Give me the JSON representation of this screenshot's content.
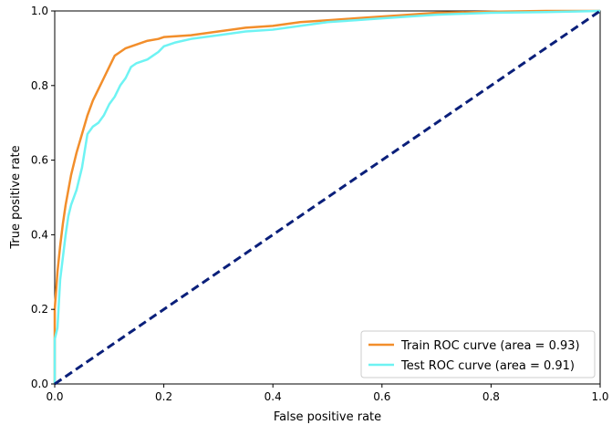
{
  "chart_data": {
    "type": "line",
    "title": "",
    "xlabel": "False positive rate",
    "ylabel": "True positive rate",
    "xlim": [
      0,
      1
    ],
    "ylim": [
      0,
      1
    ],
    "xticks": [
      "0.0",
      "0.2",
      "0.4",
      "0.6",
      "0.8",
      "1.0"
    ],
    "yticks": [
      "0.0",
      "0.2",
      "0.4",
      "0.6",
      "0.8",
      "1.0"
    ],
    "grid": false,
    "legend_position": "lower-right",
    "series": [
      {
        "name": "Train ROC curve (area = 0.93)",
        "color": "#f28e2b",
        "x": [
          0,
          0,
          0.005,
          0.01,
          0.015,
          0.02,
          0.025,
          0.03,
          0.035,
          0.04,
          0.05,
          0.06,
          0.07,
          0.08,
          0.09,
          0.1,
          0.11,
          0.12,
          0.13,
          0.15,
          0.17,
          0.19,
          0.2,
          0.25,
          0.3,
          0.35,
          0.4,
          0.45,
          0.5,
          0.55,
          0.6,
          0.65,
          0.7,
          0.8,
          0.9,
          1.0
        ],
        "y": [
          0,
          0.2,
          0.3,
          0.37,
          0.43,
          0.48,
          0.52,
          0.56,
          0.59,
          0.62,
          0.67,
          0.72,
          0.76,
          0.79,
          0.82,
          0.85,
          0.88,
          0.89,
          0.9,
          0.91,
          0.92,
          0.925,
          0.93,
          0.935,
          0.945,
          0.955,
          0.96,
          0.97,
          0.975,
          0.98,
          0.985,
          0.99,
          0.995,
          0.998,
          1.0,
          1.0
        ]
      },
      {
        "name": "Test ROC curve (area = 0.91)",
        "color": "#6ef3f3",
        "x": [
          0,
          0,
          0.005,
          0.01,
          0.015,
          0.02,
          0.025,
          0.03,
          0.04,
          0.05,
          0.06,
          0.07,
          0.08,
          0.09,
          0.1,
          0.11,
          0.12,
          0.13,
          0.14,
          0.15,
          0.17,
          0.18,
          0.19,
          0.2,
          0.22,
          0.25,
          0.3,
          0.35,
          0.4,
          0.45,
          0.5,
          0.55,
          0.6,
          0.7,
          0.8,
          0.9,
          1.0
        ],
        "y": [
          0,
          0.12,
          0.15,
          0.28,
          0.34,
          0.4,
          0.45,
          0.48,
          0.52,
          0.58,
          0.67,
          0.69,
          0.7,
          0.72,
          0.75,
          0.77,
          0.8,
          0.82,
          0.85,
          0.86,
          0.87,
          0.88,
          0.89,
          0.905,
          0.915,
          0.925,
          0.935,
          0.945,
          0.95,
          0.96,
          0.97,
          0.975,
          0.98,
          0.99,
          0.995,
          0.997,
          1.0
        ]
      },
      {
        "name": "",
        "color": "#0a1f7a",
        "dashed": true,
        "x": [
          0,
          1
        ],
        "y": [
          0,
          1
        ]
      }
    ]
  }
}
